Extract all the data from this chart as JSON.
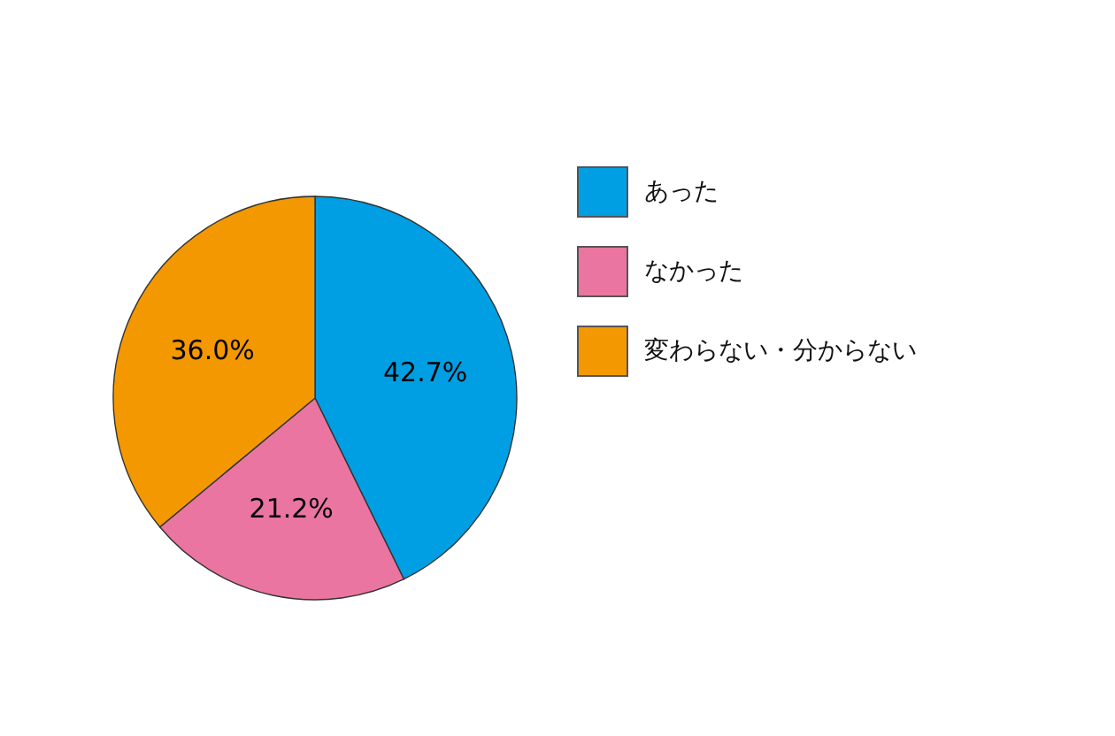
{
  "chart_data": {
    "type": "pie",
    "categories": [
      "あった",
      "なかった",
      "変わらない・分からない"
    ],
    "values": [
      42.7,
      21.2,
      36.0
    ],
    "colors": [
      "#009fe3",
      "#ea75a0",
      "#f39800"
    ],
    "value_labels": [
      "42.7%",
      "21.2%",
      "36.0%"
    ],
    "legend": "right"
  }
}
